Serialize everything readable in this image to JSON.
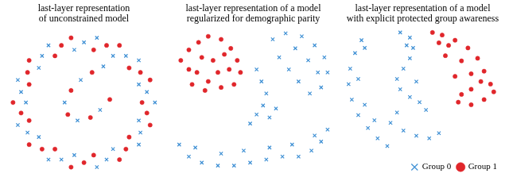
{
  "chart_data": [
    {
      "type": "scatter",
      "title": [
        "last-layer representation",
        "of unconstrained model"
      ],
      "xlim": [
        0,
        100
      ],
      "ylim": [
        0,
        100
      ],
      "tick_labels": false,
      "grid": false,
      "series": [
        {
          "color": "#3d8fd4",
          "marker": "cross",
          "values": [
            [
              94,
              50
            ],
            [
              84,
              78
            ],
            [
              58,
              93
            ],
            [
              28,
              88
            ],
            [
              9,
              65
            ],
            [
              9,
              35
            ],
            [
              28,
              12
            ],
            [
              58,
              7
            ],
            [
              84,
              22
            ],
            [
              84,
              62
            ],
            [
              68,
              81
            ],
            [
              44,
              85
            ],
            [
              22,
              73
            ],
            [
              14,
              50
            ],
            [
              22,
              27
            ],
            [
              44,
              15
            ],
            [
              68,
              19
            ],
            [
              84,
              38
            ],
            [
              89,
              57
            ],
            [
              76,
              81
            ],
            [
              50,
              90
            ],
            [
              24,
              81
            ],
            [
              11,
              57
            ],
            [
              15,
              30
            ],
            [
              36,
              12
            ],
            [
              64,
              12
            ],
            [
              85,
              30
            ],
            [
              62,
              74
            ],
            [
              48,
              65
            ],
            [
              38,
              50
            ],
            [
              46,
              38
            ],
            [
              60,
              45
            ]
          ]
        },
        {
          "color": "#e0262b",
          "marker": "circle",
          "values": [
            [
              91,
              65
            ],
            [
              72,
              88
            ],
            [
              42,
              93
            ],
            [
              16,
              78
            ],
            [
              6,
              50
            ],
            [
              16,
              22
            ],
            [
              42,
              7
            ],
            [
              72,
              12
            ],
            [
              91,
              35
            ],
            [
              86,
              50
            ],
            [
              78,
              73
            ],
            [
              56,
              85
            ],
            [
              32,
              81
            ],
            [
              16,
              62
            ],
            [
              16,
              38
            ],
            [
              32,
              19
            ],
            [
              56,
              15
            ],
            [
              78,
              27
            ],
            [
              85,
              70
            ],
            [
              64,
              88
            ],
            [
              36,
              88
            ],
            [
              15,
              70
            ],
            [
              11,
              43
            ],
            [
              24,
              19
            ],
            [
              50,
              10
            ],
            [
              76,
              19
            ],
            [
              89,
              43
            ],
            [
              55,
              70
            ],
            [
              42,
              58
            ],
            [
              40,
              42
            ],
            [
              54,
              40
            ],
            [
              66,
              52
            ]
          ]
        }
      ]
    },
    {
      "type": "scatter",
      "title": [
        "last-layer representation of a model",
        "regularized for demographic parity"
      ],
      "xlim": [
        0,
        100
      ],
      "ylim": [
        0,
        100
      ],
      "tick_labels": false,
      "grid": false,
      "series": [
        {
          "color": "#3d8fd4",
          "marker": "cross",
          "values": [
            [
              62,
              92
            ],
            [
              70,
              96
            ],
            [
              80,
              94
            ],
            [
              88,
              88
            ],
            [
              94,
              80
            ],
            [
              96,
              70
            ],
            [
              92,
              60
            ],
            [
              85,
              56
            ],
            [
              78,
              64
            ],
            [
              72,
              72
            ],
            [
              66,
              80
            ],
            [
              84,
              78
            ],
            [
              90,
              70
            ],
            [
              76,
              86
            ],
            [
              52,
              72
            ],
            [
              55,
              64
            ],
            [
              58,
              56
            ],
            [
              56,
              48
            ],
            [
              52,
              42
            ],
            [
              48,
              36
            ],
            [
              60,
              40
            ],
            [
              64,
              46
            ],
            [
              4,
              22
            ],
            [
              10,
              14
            ],
            [
              18,
              10
            ],
            [
              28,
              8
            ],
            [
              38,
              8
            ],
            [
              48,
              10
            ],
            [
              58,
              12
            ],
            [
              68,
              14
            ],
            [
              78,
              14
            ],
            [
              86,
              18
            ],
            [
              92,
              24
            ],
            [
              96,
              32
            ],
            [
              14,
              20
            ],
            [
              30,
              16
            ],
            [
              44,
              18
            ],
            [
              60,
              20
            ],
            [
              74,
              22
            ],
            [
              88,
              28
            ]
          ]
        },
        {
          "color": "#e0262b",
          "marker": "circle",
          "values": [
            [
              5,
              78
            ],
            [
              10,
              85
            ],
            [
              16,
              90
            ],
            [
              22,
              94
            ],
            [
              30,
              92
            ],
            [
              36,
              86
            ],
            [
              40,
              78
            ],
            [
              42,
              70
            ],
            [
              38,
              62
            ],
            [
              30,
              60
            ],
            [
              22,
              64
            ],
            [
              15,
              70
            ],
            [
              25,
              78
            ],
            [
              32,
              82
            ],
            [
              18,
              80
            ],
            [
              28,
              70
            ],
            [
              10,
              72
            ],
            [
              35,
              72
            ],
            [
              20,
              58
            ],
            [
              12,
              62
            ]
          ]
        }
      ]
    },
    {
      "type": "scatter",
      "title": [
        "last-layer representation of a model",
        "with explicit protected group awareness"
      ],
      "xlim": [
        0,
        100
      ],
      "ylim": [
        0,
        100
      ],
      "tick_labels": false,
      "grid": false,
      "legend": "lower right",
      "series": [
        {
          "name": "Group 0",
          "color": "#3d8fd4",
          "marker": "cross",
          "values": [
            [
              12,
              90
            ],
            [
              8,
              80
            ],
            [
              5,
              68
            ],
            [
              4,
              56
            ],
            [
              6,
              44
            ],
            [
              10,
              32
            ],
            [
              16,
              22
            ],
            [
              22,
              14
            ],
            [
              28,
              8
            ],
            [
              14,
              84
            ],
            [
              10,
              60
            ],
            [
              14,
              40
            ],
            [
              20,
              28
            ],
            [
              36,
              96
            ],
            [
              42,
              92
            ],
            [
              44,
              84
            ],
            [
              42,
              76
            ],
            [
              38,
              68
            ],
            [
              34,
              60
            ],
            [
              36,
              52
            ],
            [
              42,
              46
            ],
            [
              48,
              42
            ],
            [
              52,
              36
            ],
            [
              46,
              58
            ],
            [
              40,
              86
            ],
            [
              30,
              26
            ],
            [
              38,
              20
            ],
            [
              46,
              16
            ],
            [
              54,
              14
            ],
            [
              60,
              18
            ],
            [
              34,
              34
            ]
          ]
        },
        {
          "name": "Group 1",
          "color": "#e0262b",
          "marker": "circle",
          "values": [
            [
              56,
              96
            ],
            [
              62,
              94
            ],
            [
              70,
              90
            ],
            [
              78,
              84
            ],
            [
              84,
              76
            ],
            [
              88,
              66
            ],
            [
              86,
              58
            ],
            [
              80,
              52
            ],
            [
              74,
              48
            ],
            [
              72,
              42
            ],
            [
              80,
              40
            ],
            [
              88,
              44
            ],
            [
              94,
              50
            ],
            [
              66,
              86
            ],
            [
              74,
              74
            ],
            [
              80,
              64
            ],
            [
              64,
              78
            ],
            [
              70,
              62
            ],
            [
              60,
              88
            ],
            [
              92,
              56
            ]
          ]
        }
      ]
    }
  ]
}
